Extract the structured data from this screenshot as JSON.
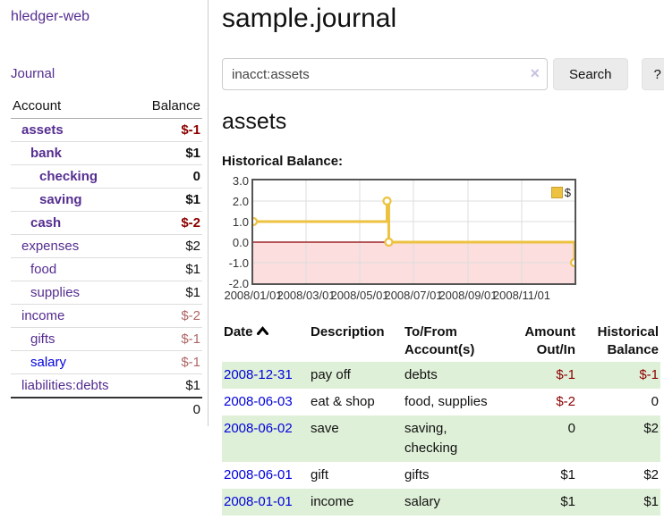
{
  "app": {
    "brand": "hledger-web"
  },
  "sidebar": {
    "journal_label": "Journal",
    "accounts": {
      "headers": {
        "account": "Account",
        "balance": "Balance"
      },
      "rows": [
        {
          "name": "assets",
          "balance": "$-1",
          "indent": 1,
          "bold": true,
          "balance_tone": "negative-strong",
          "link_tone": "visited"
        },
        {
          "name": "bank",
          "balance": "$1",
          "indent": 2,
          "bold": true,
          "balance_tone": "normal",
          "link_tone": "visited"
        },
        {
          "name": "checking",
          "balance": "0",
          "indent": 3,
          "bold": true,
          "balance_tone": "normal",
          "link_tone": "visited"
        },
        {
          "name": "saving",
          "balance": "$1",
          "indent": 3,
          "bold": true,
          "balance_tone": "normal",
          "link_tone": "visited"
        },
        {
          "name": "cash",
          "balance": "$-2",
          "indent": 2,
          "bold": true,
          "balance_tone": "negative-strong",
          "link_tone": "visited"
        },
        {
          "name": "expenses",
          "balance": "$2",
          "indent": 1,
          "bold": false,
          "balance_tone": "normal",
          "link_tone": "visited"
        },
        {
          "name": "food",
          "balance": "$1",
          "indent": 2,
          "bold": false,
          "balance_tone": "normal",
          "link_tone": "visited"
        },
        {
          "name": "supplies",
          "balance": "$1",
          "indent": 2,
          "bold": false,
          "balance_tone": "normal",
          "link_tone": "visited"
        },
        {
          "name": "income",
          "balance": "$-2",
          "indent": 1,
          "bold": false,
          "balance_tone": "negative-soft",
          "link_tone": "visited"
        },
        {
          "name": "gifts",
          "balance": "$-1",
          "indent": 2,
          "bold": false,
          "balance_tone": "negative-soft",
          "link_tone": "visited"
        },
        {
          "name": "salary",
          "balance": "$-1",
          "indent": 2,
          "bold": false,
          "balance_tone": "negative-soft",
          "link_tone": "unvisited"
        },
        {
          "name": "liabilities:debts",
          "balance": "$1",
          "indent": 1,
          "bold": false,
          "balance_tone": "normal",
          "link_tone": "visited"
        }
      ],
      "total": "0"
    }
  },
  "header": {
    "title": "sample.journal"
  },
  "search": {
    "value": "inacct:assets",
    "clear_icon": "×",
    "button_label": "Search",
    "help_label": "?"
  },
  "account_page": {
    "heading": "assets",
    "chart_title": "Historical Balance:"
  },
  "chart_data": {
    "type": "line",
    "style": "step-after",
    "title": "Historical Balance:",
    "legend": "$",
    "series": [
      {
        "name": "$",
        "points": [
          {
            "date": "2008/01/01",
            "value": 1.0
          },
          {
            "date": "2008/06/01",
            "value": 2.0
          },
          {
            "date": "2008/06/03",
            "value": 0.0
          },
          {
            "date": "2008/12/31",
            "value": -1.0
          }
        ]
      }
    ],
    "x_range": [
      "2008/01/01",
      "2008/12/31"
    ],
    "x_ticks": [
      "2008/01/01",
      "2008/03/01",
      "2008/05/01",
      "2008/07/01",
      "2008/09/01",
      "2008/11/01"
    ],
    "y_ticks": [
      "3.0",
      "2.0",
      "1.0",
      "0.0",
      "-1.0",
      "-2.0"
    ],
    "ylim": [
      -2.0,
      3.0
    ],
    "grid": true,
    "legend_position": "top-right",
    "colors": {
      "line": "#edc240",
      "marker_fill": "#ffffff",
      "negative_fill": "#fcdede",
      "zero_line": "#8b0000",
      "grid": "#dddddd",
      "border": "#545454"
    }
  },
  "register": {
    "headers": {
      "date": "Date",
      "description": "Description",
      "to_from": "To/From Account(s)",
      "amount": "Amount Out/In",
      "balance": "Historical Balance"
    },
    "sort_indicator": "up",
    "rows": [
      {
        "date": "2008-12-31",
        "description": "pay off",
        "to_from": "debts",
        "amount": "$-1",
        "balance": "$-1"
      },
      {
        "date": "2008-06-03",
        "description": "eat & shop",
        "to_from": "food, supplies",
        "amount": "$-2",
        "balance": "0"
      },
      {
        "date": "2008-06-02",
        "description": "save",
        "to_from": "saving,\nchecking",
        "amount": "0",
        "balance": "$2"
      },
      {
        "date": "2008-06-01",
        "description": "gift",
        "to_from": "gifts",
        "amount": "$1",
        "balance": "$2"
      },
      {
        "date": "2008-01-01",
        "description": "income",
        "to_from": "salary",
        "amount": "$1",
        "balance": "$1"
      }
    ]
  }
}
